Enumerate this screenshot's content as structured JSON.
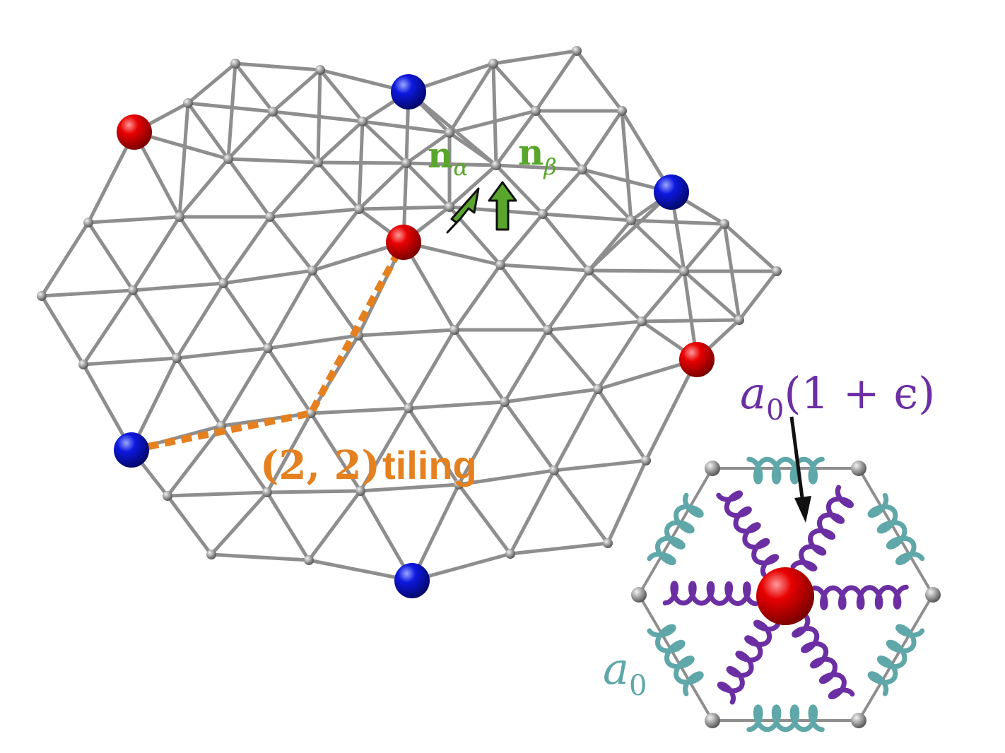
{
  "labels": {
    "n_alpha": {
      "main": "n",
      "sub": "α"
    },
    "n_beta": {
      "main": "n",
      "sub": "β"
    },
    "tiling_tuple": "(2, 2)",
    "tiling_word": "tiling",
    "strained_main": "a",
    "strained_sub": "0",
    "strained_rest": "(1 + ϵ)",
    "unstrained_main": "a",
    "unstrained_sub": "0"
  },
  "colors": {
    "rod": "#8e8e8e",
    "node": "#7a7a7a",
    "red_defect": "#d10000",
    "blue_defect": "#0a14d8",
    "tiling_path": "#e5801f",
    "director_arrow": "#5aa52c",
    "strained_spring": "#6b2fa3",
    "unstrained_spring": "#5fa7a8",
    "pointer_arrow": "#111111"
  }
}
